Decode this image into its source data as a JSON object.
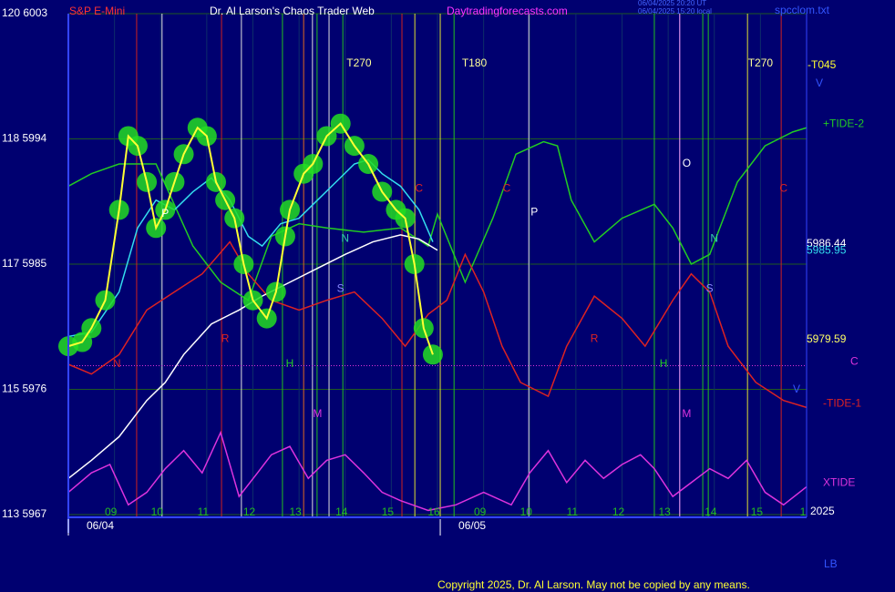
{
  "header": {
    "instrument": "S&P E-Mini",
    "title": "Dr. Al Larson's Chaos Trader Web",
    "site": "Daytradingforecasts.com",
    "stamp_ut": "06/04/2025 20:20 UT",
    "stamp_local": "06/04/2025 15:20 local",
    "file": "spcclom.txt"
  },
  "footer": {
    "copyright": "Copyright 2025, Dr. Al Larson. May not be copied by any means.",
    "year": "2025",
    "corner": "LB",
    "t_label": "-T045",
    "v_mark": "V"
  },
  "chart_data": {
    "type": "line",
    "xlim": [
      0,
      16
    ],
    "ylim": [
      5967,
      6003
    ],
    "xticks": [
      {
        "value": 1,
        "label": "09"
      },
      {
        "value": 2,
        "label": "10"
      },
      {
        "value": 3,
        "label": "11"
      },
      {
        "value": 4,
        "label": "12"
      },
      {
        "value": 5,
        "label": "13"
      },
      {
        "value": 6,
        "label": "14"
      },
      {
        "value": 7,
        "label": "15"
      },
      {
        "value": 8,
        "label": "16"
      },
      {
        "value": 9,
        "label": "09"
      },
      {
        "value": 10,
        "label": "10"
      },
      {
        "value": 11,
        "label": "11"
      },
      {
        "value": 12,
        "label": "12"
      },
      {
        "value": 13,
        "label": "13"
      },
      {
        "value": 14,
        "label": "14"
      },
      {
        "value": 15,
        "label": "15"
      },
      {
        "value": 16,
        "label": "1"
      }
    ],
    "yticks": [
      {
        "value": 6003,
        "label": "120 6003"
      },
      {
        "value": 5994,
        "label": "118 5994"
      },
      {
        "value": 5985,
        "label": "117 5985"
      },
      {
        "value": 5976,
        "label": "115 5976"
      },
      {
        "value": 5967,
        "label": "113 5967"
      }
    ],
    "dates": [
      {
        "value": 0,
        "label": "06/04"
      },
      {
        "value": 8.06,
        "label": "06/05"
      }
    ],
    "grid": true,
    "series": [
      {
        "name": "+TIDE-2",
        "color": "#22cc22",
        "x": [
          0,
          0.5,
          1.1,
          1.9,
          2.7,
          3.3,
          3.9,
          4.4,
          5.0,
          5.6,
          6.4,
          7.2,
          7.8,
          8.0,
          8.6,
          9.2,
          9.7,
          10.3,
          10.6,
          10.9,
          11.4,
          12.0,
          12.7,
          13.1,
          13.5,
          13.9,
          14.5,
          15.1,
          15.7,
          16.0
        ],
        "values": [
          5990.6,
          5991.5,
          5992.2,
          5992.2,
          5986.3,
          5983.7,
          5982.4,
          5987.0,
          5987.9,
          5987.6,
          5987.3,
          5987.6,
          5986.3,
          5988.6,
          5983.7,
          5988.3,
          5992.9,
          5993.8,
          5993.5,
          5989.6,
          5986.6,
          5988.3,
          5989.3,
          5987.6,
          5985.0,
          5985.7,
          5990.9,
          5993.5,
          5994.5,
          5994.8
        ]
      },
      {
        "name": "-TIDE-1",
        "color": "#dd2222",
        "x": [
          0,
          0.5,
          1.1,
          1.7,
          2.3,
          2.9,
          3.5,
          3.9,
          4.4,
          5.0,
          5.6,
          6.2,
          6.8,
          7.3,
          7.8,
          8.2,
          8.6,
          9.0,
          9.4,
          9.8,
          10.4,
          10.8,
          11.4,
          12.0,
          12.5,
          13.1,
          13.5,
          13.9,
          14.3,
          14.9,
          15.5,
          16.0
        ],
        "values": [
          5977.8,
          5977.1,
          5978.5,
          5981.7,
          5983.0,
          5984.3,
          5986.6,
          5984.3,
          5982.4,
          5981.7,
          5982.4,
          5983.0,
          5981.1,
          5979.1,
          5981.4,
          5982.4,
          5985.7,
          5983.0,
          5979.1,
          5976.5,
          5975.5,
          5979.1,
          5982.7,
          5981.1,
          5979.1,
          5982.4,
          5984.3,
          5983.0,
          5979.1,
          5976.5,
          5975.2,
          5974.7
        ]
      },
      {
        "name": "XTIDE",
        "color": "#dd33dd",
        "x": [
          0,
          0.5,
          0.9,
          1.3,
          1.7,
          2.1,
          2.5,
          2.9,
          3.3,
          3.7,
          4.1,
          4.4,
          4.8,
          5.2,
          5.6,
          6.0,
          6.4,
          6.8,
          7.2,
          7.8,
          8.4,
          9.0,
          9.6,
          10.0,
          10.4,
          10.8,
          11.2,
          11.6,
          12.0,
          12.4,
          12.7,
          13.1,
          13.5,
          13.9,
          14.3,
          14.7,
          15.1,
          15.5,
          16.0
        ],
        "values": [
          5968.6,
          5970.0,
          5970.6,
          5967.7,
          5968.6,
          5970.3,
          5971.6,
          5970.0,
          5972.9,
          5968.3,
          5970.0,
          5971.3,
          5971.9,
          5969.6,
          5970.9,
          5971.3,
          5970.0,
          5968.6,
          5968.0,
          5967.3,
          5967.7,
          5968.6,
          5967.7,
          5970.0,
          5971.6,
          5969.3,
          5970.9,
          5969.6,
          5970.6,
          5971.3,
          5970.3,
          5968.3,
          5969.3,
          5970.3,
          5969.6,
          5970.9,
          5968.6,
          5967.7,
          5969.0
        ]
      },
      {
        "color": "#ffffff",
        "x": [
          0,
          0.5,
          1.1,
          1.7,
          2.1,
          2.5,
          3.1,
          3.7,
          4.2,
          4.8,
          5.4,
          6.0,
          6.6,
          7.2,
          7.6,
          8.0
        ],
        "values": [
          5969.6,
          5970.9,
          5972.6,
          5975.2,
          5976.5,
          5978.5,
          5980.7,
          5981.7,
          5982.7,
          5983.7,
          5984.7,
          5985.7,
          5986.6,
          5987.1,
          5986.8,
          5986.0
        ]
      },
      {
        "color": "#33ddee",
        "x": [
          0,
          0.5,
          1.1,
          1.5,
          1.9,
          2.3,
          2.7,
          3.1,
          3.5,
          3.9,
          4.2,
          4.6,
          5.0,
          5.4,
          5.8,
          6.2,
          6.5,
          6.8,
          7.2,
          7.6,
          7.9
        ],
        "values": [
          5979.8,
          5980.1,
          5983.0,
          5987.6,
          5989.6,
          5988.9,
          5990.2,
          5991.2,
          5989.6,
          5987.0,
          5986.3,
          5987.9,
          5988.3,
          5989.6,
          5990.9,
          5992.2,
          5992.5,
          5991.5,
          5990.6,
          5988.9,
          5986.6
        ]
      },
      {
        "color": "#ffff33",
        "x": [
          0,
          0.3,
          0.5,
          0.8,
          1.1,
          1.3,
          1.5,
          1.7,
          1.9,
          2.1,
          2.3,
          2.5,
          2.8,
          3.0,
          3.2,
          3.4,
          3.6,
          3.8,
          4.0,
          4.3,
          4.5,
          4.7,
          4.8,
          5.1,
          5.3,
          5.6,
          5.9,
          6.2,
          6.5,
          6.8,
          7.1,
          7.3,
          7.5,
          7.7,
          7.9
        ],
        "values": [
          5979.1,
          5979.4,
          5980.4,
          5982.4,
          5988.9,
          5994.2,
          5993.5,
          5990.9,
          5987.6,
          5988.9,
          5990.9,
          5992.9,
          5994.8,
          5994.2,
          5990.9,
          5989.6,
          5988.3,
          5985.0,
          5982.4,
          5981.1,
          5983.0,
          5987.0,
          5988.9,
          5991.5,
          5992.2,
          5994.2,
          5995.1,
          5993.5,
          5992.2,
          5990.2,
          5988.9,
          5988.3,
          5985.0,
          5980.4,
          5978.5
        ]
      }
    ],
    "price_labels": [
      {
        "value": 5986.44,
        "color": "#ffffff"
      },
      {
        "value": 5985.95,
        "color": "#33ddee"
      },
      {
        "value": 5979.59,
        "color": "#ffff66"
      }
    ],
    "hline": {
      "value": 5977.7,
      "label": "C",
      "color": "#dd33dd"
    },
    "markers": [
      {
        "x": 1.48,
        "color": "#cc2222"
      },
      {
        "x": 2.03,
        "color": "#dddddd"
      },
      {
        "x": 3.32,
        "color": "#cc2222"
      },
      {
        "x": 3.75,
        "color": "#dddddd"
      },
      {
        "x": 4.64,
        "color": "#22bb22"
      },
      {
        "x": 5.1,
        "color": "#dd6622"
      },
      {
        "x": 5.29,
        "color": "#dddddd"
      },
      {
        "x": 5.39,
        "color": "#22bb22"
      },
      {
        "x": 5.65,
        "color": "#dddddd"
      },
      {
        "x": 5.95,
        "color": "#22bb22"
      },
      {
        "x": 7.23,
        "color": "#cc2222"
      },
      {
        "x": 7.51,
        "color": "#dddd33"
      },
      {
        "x": 8.06,
        "color": "#dddd33"
      },
      {
        "x": 8.36,
        "color": "#22bb22"
      },
      {
        "x": 9.98,
        "color": "#dddddd"
      },
      {
        "x": 12.7,
        "color": "#22bb22"
      },
      {
        "x": 13.25,
        "color": "#ffaaff"
      },
      {
        "x": 13.75,
        "color": "#22bb22"
      },
      {
        "x": 13.87,
        "color": "#22bb22"
      },
      {
        "x": 14.72,
        "color": "#dddd33"
      },
      {
        "x": 15.45,
        "color": "#cc2222"
      }
    ],
    "annotations": [
      {
        "text": "T270",
        "x": 6.3,
        "y": 5999.4,
        "color": "#ffff99"
      },
      {
        "text": "T180",
        "x": 8.8,
        "y": 5999.4,
        "color": "#ffff99"
      },
      {
        "text": "T270",
        "x": 15.0,
        "y": 5999.4,
        "color": "#ffff99"
      },
      {
        "text": "P",
        "x": 2.1,
        "y": 5988.6,
        "color": "#ffffff"
      },
      {
        "text": "N",
        "x": 6.0,
        "y": 5986.8,
        "color": "#33ccaa"
      },
      {
        "text": "S",
        "x": 5.9,
        "y": 5983.2,
        "color": "#8888ff"
      },
      {
        "text": "H",
        "x": 4.8,
        "y": 5977.8,
        "color": "#22cc22"
      },
      {
        "text": "M",
        "x": 5.4,
        "y": 5974.2,
        "color": "#dd33dd"
      },
      {
        "text": "R",
        "x": 3.4,
        "y": 5979.6,
        "color": "#dd2222"
      },
      {
        "text": "N",
        "x": 1.05,
        "y": 5977.8,
        "color": "#dd2222"
      },
      {
        "text": "C",
        "x": 7.6,
        "y": 5990.4,
        "color": "#dd2222"
      },
      {
        "text": "C",
        "x": 9.5,
        "y": 5990.4,
        "color": "#dd2222"
      },
      {
        "text": "P",
        "x": 10.1,
        "y": 5988.7,
        "color": "#ffffff"
      },
      {
        "text": "O",
        "x": 13.4,
        "y": 5992.2,
        "color": "#ffffff"
      },
      {
        "text": "N",
        "x": 14.0,
        "y": 5986.8,
        "color": "#33ccaa"
      },
      {
        "text": "S",
        "x": 13.9,
        "y": 5983.2,
        "color": "#8888ff"
      },
      {
        "text": "H",
        "x": 12.9,
        "y": 5977.8,
        "color": "#22cc22"
      },
      {
        "text": "M",
        "x": 13.4,
        "y": 5974.2,
        "color": "#dd33dd"
      },
      {
        "text": "R",
        "x": 11.4,
        "y": 5979.6,
        "color": "#dd2222"
      },
      {
        "text": "C",
        "x": 15.5,
        "y": 5990.4,
        "color": "#dd2222"
      }
    ]
  }
}
